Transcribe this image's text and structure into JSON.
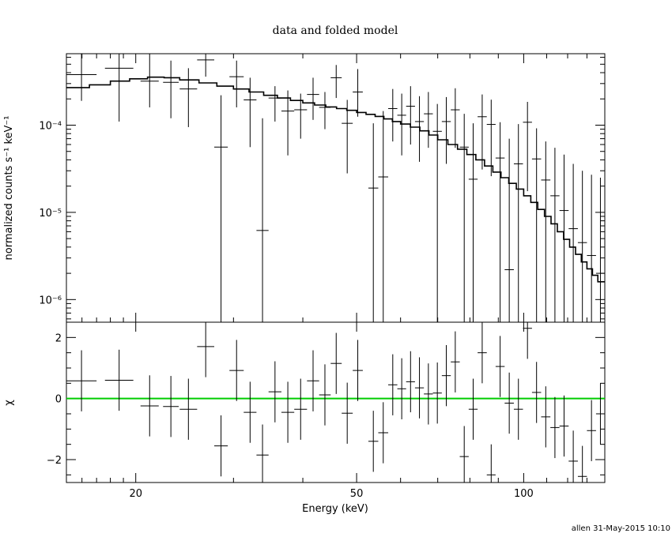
{
  "chart_data": {
    "type": "scatter",
    "title": "data and folded model",
    "xlabel": "Energy (keV)",
    "x_scale": "log",
    "xlim": [
      15,
      140
    ],
    "x_ticks": [
      {
        "value": 20,
        "label": "20"
      },
      {
        "value": 50,
        "label": "50"
      },
      {
        "value": 100,
        "label": "100"
      }
    ],
    "footer": "allen 31-May-2015 10:10",
    "top_panel": {
      "ylabel": "normalized counts s⁻¹ keV⁻¹",
      "y_scale": "log",
      "ylim": [
        5.5e-07,
        0.00066
      ],
      "y_ticks": [
        {
          "value": 1e-06,
          "label": "10⁻⁶"
        },
        {
          "value": 1e-05,
          "label": "10⁻⁵"
        },
        {
          "value": 0.0001,
          "label": "10⁻⁴"
        }
      ],
      "data": [
        {
          "x0": 15.0,
          "x1": 17.0,
          "y": 0.00038,
          "ylo": 0.00019,
          "yhi": 0.00066
        },
        {
          "x0": 17.6,
          "x1": 19.8,
          "y": 0.00045,
          "ylo": 0.00011,
          "yhi": 0.00066
        },
        {
          "x0": 20.4,
          "x1": 22.0,
          "y": 0.00032,
          "ylo": 0.00016,
          "yhi": 0.00066
        },
        {
          "x0": 22.4,
          "x1": 23.9,
          "y": 0.00031,
          "ylo": 0.00012,
          "yhi": 0.00055
        },
        {
          "x0": 24.0,
          "x1": 25.8,
          "y": 0.00026,
          "ylo": 9.5e-05,
          "yhi": 0.00045
        },
        {
          "x0": 25.8,
          "x1": 27.7,
          "y": 0.00056,
          "ylo": 0.00036,
          "yhi": 0.00066
        },
        {
          "x0": 27.7,
          "x1": 29.3,
          "y": 5.6e-05,
          "ylo": 5.5e-07,
          "yhi": 0.00022
        },
        {
          "x0": 29.5,
          "x1": 31.3,
          "y": 0.00036,
          "ylo": 0.00016,
          "yhi": 0.00055
        },
        {
          "x0": 31.3,
          "x1": 33.0,
          "y": 0.000195,
          "ylo": 5.6e-05,
          "yhi": 0.00035
        },
        {
          "x0": 33.0,
          "x1": 34.7,
          "y": 6.2e-06,
          "ylo": 5.5e-07,
          "yhi": 0.00012
        },
        {
          "x0": 34.7,
          "x1": 36.6,
          "y": 0.000205,
          "ylo": 0.00011,
          "yhi": 0.00028
        },
        {
          "x0": 36.6,
          "x1": 38.6,
          "y": 0.000145,
          "ylo": 4.5e-05,
          "yhi": 0.00025
        },
        {
          "x0": 38.6,
          "x1": 40.7,
          "y": 0.00015,
          "ylo": 7e-05,
          "yhi": 0.00023
        },
        {
          "x0": 40.7,
          "x1": 42.8,
          "y": 0.000225,
          "ylo": 0.000115,
          "yhi": 0.00035
        },
        {
          "x0": 42.8,
          "x1": 44.9,
          "y": 0.00016,
          "ylo": 9e-05,
          "yhi": 0.00024
        },
        {
          "x0": 44.9,
          "x1": 47.0,
          "y": 0.00035,
          "ylo": 0.000205,
          "yhi": 0.00049
        },
        {
          "x0": 47.0,
          "x1": 49.2,
          "y": 0.000105,
          "ylo": 2.8e-05,
          "yhi": 0.000195
        },
        {
          "x0": 49.2,
          "x1": 51.3,
          "y": 0.00024,
          "ylo": 0.000125,
          "yhi": 0.00044
        },
        {
          "x0": 52.5,
          "x1": 54.7,
          "y": 1.9e-05,
          "ylo": 5.5e-07,
          "yhi": 0.000105
        },
        {
          "x0": 54.7,
          "x1": 57.0,
          "y": 2.55e-05,
          "ylo": 5.5e-07,
          "yhi": 0.000145
        },
        {
          "x0": 57.0,
          "x1": 59.2,
          "y": 0.000155,
          "ylo": 6.5e-05,
          "yhi": 0.00026
        },
        {
          "x0": 59.2,
          "x1": 61.4,
          "y": 0.00013,
          "ylo": 4.5e-05,
          "yhi": 0.00023
        },
        {
          "x0": 61.4,
          "x1": 63.7,
          "y": 0.000165,
          "ylo": 6e-05,
          "yhi": 0.00028
        },
        {
          "x0": 63.7,
          "x1": 66.1,
          "y": 0.00011,
          "ylo": 3.8e-05,
          "yhi": 0.000215
        },
        {
          "x0": 66.1,
          "x1": 68.6,
          "y": 0.000135,
          "ylo": 5.5e-05,
          "yhi": 0.00024
        },
        {
          "x0": 68.6,
          "x1": 71.2,
          "y": 8.5e-05,
          "ylo": 5.5e-07,
          "yhi": 0.000175
        },
        {
          "x0": 71.2,
          "x1": 73.9,
          "y": 0.00011,
          "ylo": 3.6e-05,
          "yhi": 0.00021
        },
        {
          "x0": 73.9,
          "x1": 76.7,
          "y": 0.00015,
          "ylo": 5.5e-05,
          "yhi": 0.000265
        },
        {
          "x0": 76.7,
          "x1": 79.6,
          "y": 5.6e-05,
          "ylo": 5.5e-07,
          "yhi": 0.000135
        },
        {
          "x0": 79.6,
          "x1": 82.6,
          "y": 2.4e-05,
          "ylo": 5.5e-07,
          "yhi": 0.000105
        },
        {
          "x0": 82.6,
          "x1": 85.8,
          "y": 0.000125,
          "ylo": 3.1e-05,
          "yhi": 0.000225
        },
        {
          "x0": 85.8,
          "x1": 89.0,
          "y": 0.000102,
          "ylo": 2.6e-05,
          "yhi": 0.000196
        },
        {
          "x0": 89.0,
          "x1": 92.4,
          "y": 4.2e-05,
          "ylo": 5.5e-07,
          "yhi": 0.000108
        },
        {
          "x0": 92.4,
          "x1": 96.0,
          "y": 2.2e-06,
          "ylo": 5.5e-07,
          "yhi": 7e-05
        },
        {
          "x0": 96.0,
          "x1": 99.7,
          "y": 3.6e-05,
          "ylo": 5.5e-07,
          "yhi": 0.000103
        },
        {
          "x0": 99.7,
          "x1": 103.5,
          "y": 0.000108,
          "ylo": 1.75e-05,
          "yhi": 0.000185
        },
        {
          "x0": 103.5,
          "x1": 107.5,
          "y": 4.1e-05,
          "ylo": 5.5e-07,
          "yhi": 9.2e-05
        },
        {
          "x0": 107.5,
          "x1": 111.7,
          "y": 2.35e-05,
          "ylo": 5.5e-07,
          "yhi": 6.5e-05
        },
        {
          "x0": 111.7,
          "x1": 116.0,
          "y": 1.55e-05,
          "ylo": 5.5e-07,
          "yhi": 5.5e-05
        },
        {
          "x0": 116.0,
          "x1": 120.5,
          "y": 1.05e-05,
          "ylo": 5.5e-07,
          "yhi": 4.6e-05
        },
        {
          "x0": 120.5,
          "x1": 125.2,
          "y": 6.5e-06,
          "ylo": 5.5e-07,
          "yhi": 3.6e-05
        },
        {
          "x0": 125.2,
          "x1": 130.0,
          "y": 4.5e-06,
          "ylo": 5.5e-07,
          "yhi": 3e-05
        },
        {
          "x0": 130.0,
          "x1": 135.0,
          "y": 3.2e-06,
          "ylo": 5.5e-07,
          "yhi": 2.7e-05
        },
        {
          "x0": 135.0,
          "x1": 140.0,
          "y": 2e-06,
          "ylo": 5.5e-07,
          "yhi": 2.5e-05
        }
      ],
      "model": [
        {
          "x": 15.0,
          "y": 0.00027
        },
        {
          "x": 16.5,
          "y": 0.00029
        },
        {
          "x": 18.0,
          "y": 0.00032
        },
        {
          "x": 19.5,
          "y": 0.00034
        },
        {
          "x": 21.0,
          "y": 0.000355
        },
        {
          "x": 22.5,
          "y": 0.00035
        },
        {
          "x": 24.0,
          "y": 0.00033
        },
        {
          "x": 26.0,
          "y": 0.000305
        },
        {
          "x": 28.0,
          "y": 0.00028
        },
        {
          "x": 30.0,
          "y": 0.00026
        },
        {
          "x": 32.0,
          "y": 0.00024
        },
        {
          "x": 34.0,
          "y": 0.00022
        },
        {
          "x": 36.0,
          "y": 0.000205
        },
        {
          "x": 38.0,
          "y": 0.000192
        },
        {
          "x": 40.0,
          "y": 0.00018
        },
        {
          "x": 42.0,
          "y": 0.00017
        },
        {
          "x": 44.0,
          "y": 0.000162
        },
        {
          "x": 46.0,
          "y": 0.000155
        },
        {
          "x": 48.0,
          "y": 0.000148
        },
        {
          "x": 50.0,
          "y": 0.00014
        },
        {
          "x": 52.0,
          "y": 0.000133
        },
        {
          "x": 54.0,
          "y": 0.000126
        },
        {
          "x": 56.0,
          "y": 0.000118
        },
        {
          "x": 58.0,
          "y": 0.00011
        },
        {
          "x": 60.0,
          "y": 0.000103
        },
        {
          "x": 62.5,
          "y": 9.5e-05
        },
        {
          "x": 65.0,
          "y": 8.6e-05
        },
        {
          "x": 67.5,
          "y": 7.7e-05
        },
        {
          "x": 70.0,
          "y": 6.8e-05
        },
        {
          "x": 73.0,
          "y": 6e-05
        },
        {
          "x": 76.0,
          "y": 5.3e-05
        },
        {
          "x": 79.0,
          "y": 4.6e-05
        },
        {
          "x": 82.0,
          "y": 4e-05
        },
        {
          "x": 85.0,
          "y": 3.4e-05
        },
        {
          "x": 88.0,
          "y": 2.9e-05
        },
        {
          "x": 91.0,
          "y": 2.5e-05
        },
        {
          "x": 94.0,
          "y": 2.15e-05
        },
        {
          "x": 97.0,
          "y": 1.85e-05
        },
        {
          "x": 100.0,
          "y": 1.55e-05
        },
        {
          "x": 103.0,
          "y": 1.3e-05
        },
        {
          "x": 106.0,
          "y": 1.08e-05
        },
        {
          "x": 109.0,
          "y": 9e-06
        },
        {
          "x": 112.0,
          "y": 7.4e-06
        },
        {
          "x": 115.0,
          "y": 6e-06
        },
        {
          "x": 118.0,
          "y": 4.9e-06
        },
        {
          "x": 121.0,
          "y": 4e-06
        },
        {
          "x": 124.0,
          "y": 3.3e-06
        },
        {
          "x": 127.0,
          "y": 2.7e-06
        },
        {
          "x": 130.0,
          "y": 2.25e-06
        },
        {
          "x": 133.0,
          "y": 1.9e-06
        },
        {
          "x": 136.0,
          "y": 1.6e-06
        },
        {
          "x": 140.0,
          "y": 1.35e-06
        }
      ]
    },
    "bottom_panel": {
      "ylabel": "χ",
      "y_scale": "linear",
      "ylim": [
        -2.75,
        2.5
      ],
      "y_ticks": [
        {
          "value": -2,
          "label": "−2"
        },
        {
          "value": 0,
          "label": "0"
        },
        {
          "value": 2,
          "label": "2"
        }
      ],
      "zero_line_color": "#00cc00",
      "residuals": [
        {
          "x0": 15.0,
          "x1": 17.0,
          "y": 0.58
        },
        {
          "x0": 17.6,
          "x1": 19.8,
          "y": 0.6
        },
        {
          "x0": 20.4,
          "x1": 22.0,
          "y": -0.24
        },
        {
          "x0": 22.4,
          "x1": 23.9,
          "y": -0.26
        },
        {
          "x0": 24.0,
          "x1": 25.8,
          "y": -0.35
        },
        {
          "x0": 25.8,
          "x1": 27.7,
          "y": 1.7
        },
        {
          "x0": 27.7,
          "x1": 29.3,
          "y": -1.55
        },
        {
          "x0": 29.5,
          "x1": 31.3,
          "y": 0.92
        },
        {
          "x0": 31.3,
          "x1": 33.0,
          "y": -0.45
        },
        {
          "x0": 33.0,
          "x1": 34.7,
          "y": -1.85
        },
        {
          "x0": 34.7,
          "x1": 36.6,
          "y": 0.22
        },
        {
          "x0": 36.6,
          "x1": 38.6,
          "y": -0.45
        },
        {
          "x0": 38.6,
          "x1": 40.7,
          "y": -0.35
        },
        {
          "x0": 40.7,
          "x1": 42.8,
          "y": 0.58
        },
        {
          "x0": 42.8,
          "x1": 44.9,
          "y": 0.12
        },
        {
          "x0": 44.9,
          "x1": 47.0,
          "y": 1.15
        },
        {
          "x0": 47.0,
          "x1": 49.2,
          "y": -0.48
        },
        {
          "x0": 49.2,
          "x1": 51.3,
          "y": 0.92
        },
        {
          "x0": 52.5,
          "x1": 54.7,
          "y": -1.4
        },
        {
          "x0": 54.7,
          "x1": 57.0,
          "y": -1.12
        },
        {
          "x0": 57.0,
          "x1": 59.2,
          "y": 0.45
        },
        {
          "x0": 59.2,
          "x1": 61.4,
          "y": 0.32
        },
        {
          "x0": 61.4,
          "x1": 63.7,
          "y": 0.55
        },
        {
          "x0": 63.7,
          "x1": 66.1,
          "y": 0.35
        },
        {
          "x0": 66.1,
          "x1": 68.6,
          "y": 0.15
        },
        {
          "x0": 68.6,
          "x1": 71.2,
          "y": 0.18
        },
        {
          "x0": 71.2,
          "x1": 73.9,
          "y": 0.75
        },
        {
          "x0": 73.9,
          "x1": 76.7,
          "y": 1.2
        },
        {
          "x0": 76.7,
          "x1": 79.6,
          "y": -1.9
        },
        {
          "x0": 79.6,
          "x1": 82.6,
          "y": -0.35
        },
        {
          "x0": 82.6,
          "x1": 85.8,
          "y": 1.5
        },
        {
          "x0": 85.8,
          "x1": 89.0,
          "y": -2.5
        },
        {
          "x0": 89.0,
          "x1": 92.4,
          "y": 1.05
        },
        {
          "x0": 92.4,
          "x1": 96.0,
          "y": -0.15
        },
        {
          "x0": 96.0,
          "x1": 99.7,
          "y": -0.35
        },
        {
          "x0": 99.7,
          "x1": 103.5,
          "y": 2.3
        },
        {
          "x0": 103.5,
          "x1": 107.5,
          "y": 0.2
        },
        {
          "x0": 107.5,
          "x1": 111.7,
          "y": -0.6
        },
        {
          "x0": 111.7,
          "x1": 116.0,
          "y": -0.95
        },
        {
          "x0": 116.0,
          "x1": 120.5,
          "y": -0.9
        },
        {
          "x0": 120.5,
          "x1": 125.2,
          "y": -2.05
        },
        {
          "x0": 125.2,
          "x1": 130.0,
          "y": -2.55
        },
        {
          "x0": 130.0,
          "x1": 135.0,
          "y": -1.05
        },
        {
          "x0": 135.0,
          "x1": 140.0,
          "y": -0.5
        }
      ]
    }
  }
}
